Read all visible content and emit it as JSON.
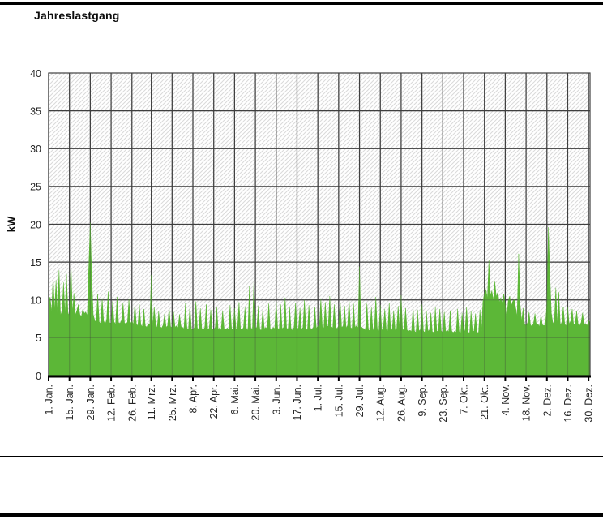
{
  "chart_data": {
    "type": "area",
    "title": "Jahreslastgang",
    "ylabel": "kW",
    "xlabel": "",
    "ylim": [
      0,
      40
    ],
    "yticks": [
      0,
      5,
      10,
      15,
      20,
      25,
      30,
      35,
      40
    ],
    "ytick_labels": [
      "0",
      "5",
      "10",
      "15",
      "20",
      "25",
      "30",
      "35",
      "40"
    ],
    "grid": true,
    "legend": false,
    "background_pattern": "diagonal-hatch",
    "series_name": "Jahreslastgang",
    "sampling": "daily, 1 year",
    "xticks": [
      {
        "label": "1. Jan.",
        "day": 0
      },
      {
        "label": "15. Jan.",
        "day": 14
      },
      {
        "label": "29. Jan.",
        "day": 28
      },
      {
        "label": "12. Feb.",
        "day": 42
      },
      {
        "label": "26. Feb.",
        "day": 56
      },
      {
        "label": "11. Mrz.",
        "day": 69
      },
      {
        "label": "25. Mrz.",
        "day": 83
      },
      {
        "label": "8. Apr.",
        "day": 97
      },
      {
        "label": "22. Apr.",
        "day": 111
      },
      {
        "label": "6. Mai.",
        "day": 125
      },
      {
        "label": "20. Mai.",
        "day": 139
      },
      {
        "label": "3. Jun.",
        "day": 153
      },
      {
        "label": "17. Jun.",
        "day": 167
      },
      {
        "label": "1. Jul.",
        "day": 181
      },
      {
        "label": "15. Jul.",
        "day": 195
      },
      {
        "label": "29. Jul.",
        "day": 209
      },
      {
        "label": "12. Aug.",
        "day": 223
      },
      {
        "label": "26. Aug.",
        "day": 237
      },
      {
        "label": "9. Sep.",
        "day": 251
      },
      {
        "label": "23. Sep.",
        "day": 265
      },
      {
        "label": "7. Okt.",
        "day": 279
      },
      {
        "label": "21. Okt.",
        "day": 293
      },
      {
        "label": "4. Nov.",
        "day": 307
      },
      {
        "label": "18. Nov.",
        "day": 321
      },
      {
        "label": "2. Dez.",
        "day": 335
      },
      {
        "label": "16. Dez.",
        "day": 349
      },
      {
        "label": "30. Dez.",
        "day": 363
      }
    ],
    "values": [
      9.8,
      10.4,
      8.3,
      13.1,
      8.6,
      12.6,
      8.2,
      13.9,
      8.0,
      8.5,
      12.3,
      8.1,
      13.4,
      8.3,
      7.9,
      15.1,
      8.2,
      10.9,
      8.0,
      8.6,
      9.4,
      8.1,
      7.8,
      8.8,
      8.2,
      8.4,
      7.9,
      14.5,
      20.2,
      12.9,
      8.1,
      7.3,
      7.0,
      10.8,
      7.1,
      6.9,
      10.2,
      7.2,
      6.8,
      7.4,
      11.1,
      7.0,
      6.9,
      9.8,
      7.1,
      6.8,
      10.4,
      7.0,
      6.9,
      7.3,
      9.6,
      7.0,
      6.8,
      7.1,
      10.1,
      6.9,
      7.2,
      6.8,
      9.5,
      6.8,
      6.6,
      9.4,
      6.7,
      6.5,
      8.8,
      6.6,
      6.4,
      6.9,
      6.7,
      13.3,
      6.5,
      9.1,
      6.6,
      6.4,
      8.5,
      6.5,
      6.3,
      6.7,
      8.2,
      6.4,
      6.6,
      9.0,
      6.5,
      6.3,
      8.4,
      6.4,
      6.6,
      6.3,
      8.1,
      6.5,
      6.4,
      6.2,
      9.6,
      6.3,
      6.1,
      9.2,
      6.2,
      6.0,
      6.4,
      9.8,
      6.3,
      6.1,
      8.9,
      6.2,
      6.0,
      6.4,
      9.4,
      6.1,
      6.3,
      8.7,
      6.2,
      6.0,
      6.4,
      9.1,
      6.1,
      6.3,
      6.0,
      8.6,
      6.2,
      6.1,
      6.3,
      6.1,
      9.3,
      6.2,
      6.0,
      8.9,
      6.1,
      6.3,
      9.7,
      6.2,
      6.0,
      6.4,
      9.0,
      6.2,
      6.0,
      11.9,
      6.3,
      6.1,
      12.5,
      6.2,
      6.4,
      9.2,
      6.1,
      6.0,
      8.8,
      6.2,
      6.4,
      6.1,
      9.5,
      6.2,
      6.0,
      6.4,
      6.2,
      9.9,
      6.3,
      6.1,
      9.4,
      6.2,
      6.4,
      10.3,
      6.3,
      6.1,
      9.1,
      6.2,
      6.0,
      6.4,
      9.6,
      6.2,
      6.3,
      8.9,
      6.1,
      6.4,
      10.0,
      6.2,
      6.0,
      9.3,
      6.3,
      6.1,
      6.4,
      9.0,
      6.2,
      6.6,
      6.4,
      10.2,
      6.5,
      6.3,
      9.7,
      6.4,
      6.6,
      10.5,
      6.5,
      6.3,
      9.4,
      6.4,
      6.2,
      6.6,
      9.9,
      6.4,
      6.5,
      9.2,
      6.3,
      6.6,
      10.1,
      6.4,
      6.2,
      9.5,
      6.4,
      6.6,
      6.3,
      14.4,
      6.5,
      6.3,
      6.2,
      6.0,
      9.5,
      6.1,
      5.9,
      9.0,
      6.0,
      6.2,
      10.4,
      6.1,
      5.9,
      9.3,
      6.0,
      6.2,
      8.8,
      6.1,
      5.9,
      9.6,
      6.0,
      6.1,
      8.6,
      6.0,
      6.2,
      9.2,
      6.1,
      10.6,
      6.0,
      6.2,
      8.9,
      6.0,
      5.9,
      6.0,
      5.8,
      9.1,
      5.9,
      5.7,
      8.7,
      5.9,
      6.1,
      9.4,
      5.9,
      5.7,
      8.5,
      5.9,
      6.0,
      8.3,
      5.8,
      5.7,
      9.0,
      5.9,
      5.8,
      8.8,
      5.9,
      5.7,
      8.4,
      5.8,
      6.0,
      5.8,
      8.6,
      5.9,
      5.7,
      5.9,
      5.7,
      8.8,
      5.8,
      5.6,
      8.3,
      5.8,
      6.0,
      9.1,
      5.8,
      5.6,
      8.5,
      5.8,
      5.9,
      8.2,
      5.8,
      5.6,
      8.7,
      5.8,
      9.8,
      10.9,
      11.4,
      10.2,
      15.2,
      10.6,
      11.2,
      9.9,
      12.4,
      10.4,
      11.0,
      9.7,
      10.3,
      9.6,
      10.8,
      9.4,
      7.6,
      9.9,
      10.5,
      9.2,
      9.8,
      10.1,
      9.0,
      7.8,
      16.1,
      9.4,
      7.2,
      8.9,
      6.8,
      6.6,
      7.0,
      8.4,
      6.7,
      6.5,
      6.9,
      8.2,
      6.6,
      6.8,
      6.5,
      8.0,
      6.7,
      6.6,
      6.8,
      9.4,
      19.6,
      13.2,
      8.3,
      6.9,
      7.1,
      11.6,
      6.8,
      11.0,
      6.7,
      7.0,
      9.1,
      6.8,
      6.6,
      9.0,
      6.8,
      7.2,
      8.8,
      6.7,
      6.9,
      8.5,
      6.8,
      6.6,
      7.0,
      8.3,
      6.7,
      6.9,
      6.6,
      7.3,
      7.0
    ],
    "colors": {
      "area": "#5CB737",
      "grid": "#404040",
      "hatch": "#D9D9D9",
      "axis": "#000000",
      "text": "#262626",
      "title": "#0D0D0D"
    }
  }
}
